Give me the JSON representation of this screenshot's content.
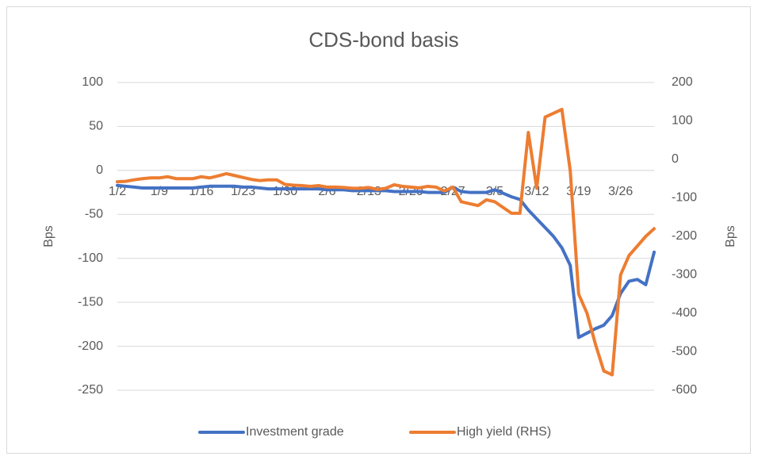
{
  "chart_data": {
    "type": "line",
    "title": "CDS-bond basis",
    "y_label": "Bps",
    "y2_label": "Bps",
    "categories": [
      "1/2",
      null,
      null,
      null,
      null,
      "1/9",
      null,
      null,
      null,
      null,
      "1/16",
      null,
      null,
      null,
      null,
      "1/23",
      null,
      null,
      null,
      null,
      "1/30",
      null,
      null,
      null,
      null,
      "2/6",
      null,
      null,
      null,
      null,
      "2/13",
      null,
      null,
      null,
      null,
      "2/20",
      null,
      null,
      null,
      null,
      "2/27",
      null,
      null,
      null,
      null,
      "3/5",
      null,
      null,
      null,
      null,
      "3/12",
      null,
      null,
      null,
      null,
      "3/19",
      null,
      null,
      null,
      null,
      "3/26",
      null,
      null,
      null,
      null
    ],
    "ylim": [
      -250,
      100
    ],
    "yticks": [
      -250,
      -200,
      -150,
      -100,
      -50,
      0,
      50,
      100
    ],
    "y2lim": [
      -600,
      200
    ],
    "y2ticks": [
      -600,
      -500,
      -400,
      -300,
      -200,
      -100,
      0,
      100,
      200
    ],
    "grid": true,
    "legend": "bottom",
    "series": [
      {
        "name": "Investment grade",
        "color": "#4472c4",
        "values": [
          -17,
          -18,
          -19,
          -20,
          -20,
          -20,
          -20,
          -20,
          -20,
          -20,
          -19,
          -18,
          -18,
          -18,
          -18,
          -19,
          -19,
          -20,
          -21,
          -21,
          -21,
          -21,
          -21,
          -21,
          -21,
          -22,
          -22,
          -22,
          -23,
          -23,
          -23,
          -23,
          -23,
          -24,
          -24,
          -24,
          -24,
          -25,
          -25,
          -25,
          -19,
          -24,
          -25,
          -25,
          -25,
          -22,
          -26,
          -30,
          -33,
          -45,
          -55,
          -65,
          -75,
          -88,
          -108,
          -190,
          -185,
          -180,
          -176,
          -165,
          -140,
          -126,
          -124,
          -130,
          -93
        ]
      },
      {
        "name": "High yield (RHS)",
        "color": "#ed7d31",
        "axis": "y2",
        "values": [
          -58,
          -57,
          -53,
          -50,
          -48,
          -48,
          -45,
          -50,
          -50,
          -50,
          -45,
          -48,
          -43,
          -37,
          -42,
          -47,
          -52,
          -55,
          -53,
          -53,
          -65,
          -67,
          -68,
          -70,
          -68,
          -72,
          -72,
          -73,
          -75,
          -75,
          -73,
          -78,
          -75,
          -66,
          -70,
          -72,
          -74,
          -70,
          -72,
          -82,
          -72,
          -110,
          -115,
          -120,
          -105,
          -110,
          -125,
          -140,
          -140,
          70,
          -75,
          110,
          120,
          130,
          -30,
          -350,
          -400,
          -480,
          -550,
          -560,
          -300,
          -250,
          -225,
          -200,
          -180
        ]
      }
    ]
  }
}
